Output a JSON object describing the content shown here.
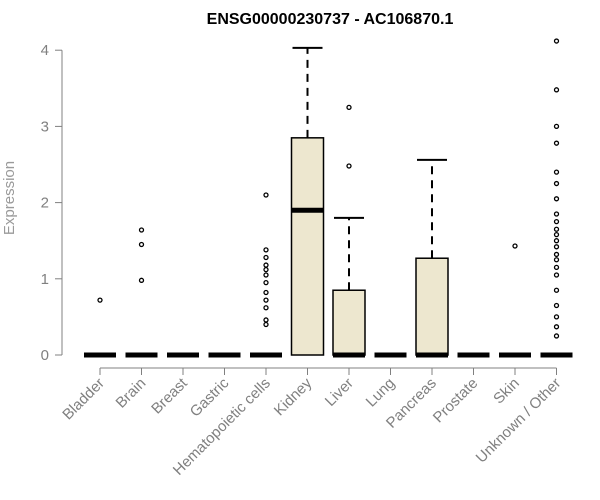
{
  "chart_data": {
    "type": "boxplot",
    "title": "ENSG00000230737 - AC106870.1",
    "ylabel": "Expression",
    "xlabel": "",
    "ylim": [
      0,
      4.2
    ],
    "yticks": [
      "0",
      "1",
      "2",
      "3",
      "4"
    ],
    "categories": [
      "Bladder",
      "Brain",
      "Breast",
      "Gastric",
      "Hematopoietic cells",
      "Kidney",
      "Liver",
      "Lung",
      "Pancreas",
      "Prostate",
      "Skin",
      "Unknown / Other"
    ],
    "boxes": [
      {
        "q1": 0,
        "median": 0,
        "q3": 0,
        "whisker_low": 0,
        "whisker_high": 0,
        "outliers": [
          0.72
        ]
      },
      {
        "q1": 0,
        "median": 0,
        "q3": 0,
        "whisker_low": 0,
        "whisker_high": 0,
        "outliers": [
          0.98,
          1.45,
          1.64
        ]
      },
      {
        "q1": 0,
        "median": 0,
        "q3": 0,
        "whisker_low": 0,
        "whisker_high": 0,
        "outliers": []
      },
      {
        "q1": 0,
        "median": 0,
        "q3": 0,
        "whisker_low": 0,
        "whisker_high": 0,
        "outliers": []
      },
      {
        "q1": 0,
        "median": 0,
        "q3": 0,
        "whisker_low": 0,
        "whisker_high": 0,
        "outliers": [
          0.4,
          0.46,
          0.62,
          0.72,
          0.82,
          0.95,
          1.05,
          1.12,
          1.18,
          1.28,
          1.38,
          2.1
        ]
      },
      {
        "q1": 0,
        "median": 1.9,
        "q3": 2.85,
        "whisker_low": 0,
        "whisker_high": 4.03,
        "outliers": []
      },
      {
        "q1": 0,
        "median": 0,
        "q3": 0.85,
        "whisker_low": 0,
        "whisker_high": 1.8,
        "outliers": [
          2.48,
          3.25
        ]
      },
      {
        "q1": 0,
        "median": 0,
        "q3": 0,
        "whisker_low": 0,
        "whisker_high": 0,
        "outliers": []
      },
      {
        "q1": 0,
        "median": 0,
        "q3": 1.27,
        "whisker_low": 0,
        "whisker_high": 2.56,
        "outliers": []
      },
      {
        "q1": 0,
        "median": 0,
        "q3": 0,
        "whisker_low": 0,
        "whisker_high": 0,
        "outliers": []
      },
      {
        "q1": 0,
        "median": 0,
        "q3": 0,
        "whisker_low": 0,
        "whisker_high": 0,
        "outliers": [
          1.43
        ]
      },
      {
        "q1": 0,
        "median": 0,
        "q3": 0,
        "whisker_low": 0,
        "whisker_high": 0,
        "outliers": [
          0.25,
          0.37,
          0.5,
          0.65,
          0.85,
          1.05,
          1.15,
          1.25,
          1.32,
          1.42,
          1.5,
          1.58,
          1.65,
          1.75,
          1.85,
          2.05,
          2.25,
          2.4,
          2.78,
          3.0,
          3.48,
          4.12
        ]
      }
    ],
    "box_fill": "#ede7cf",
    "grid": false,
    "legend": "none"
  }
}
